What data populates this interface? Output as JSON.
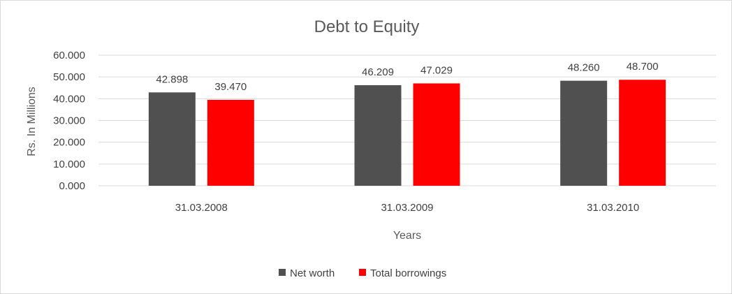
{
  "chart_data": {
    "type": "bar",
    "title": "Debt to Equity",
    "xlabel": "Years",
    "ylabel": "Rs. In Millions",
    "categories": [
      "31.03.2008",
      "31.03.2009",
      "31.03.2010"
    ],
    "series": [
      {
        "name": "Net worth",
        "values": [
          42.898,
          46.209,
          48.26
        ],
        "labels": [
          "42.898",
          "46.209",
          "48.260"
        ],
        "color": "#505050"
      },
      {
        "name": "Total borrowings",
        "values": [
          39.47,
          47.029,
          48.7
        ],
        "labels": [
          "39.470",
          "47.029",
          "48.700"
        ],
        "color": "#ff0000"
      }
    ],
    "ylim": [
      0,
      60
    ],
    "yticks": [
      "0.000",
      "10.000",
      "20.000",
      "30.000",
      "40.000",
      "50.000",
      "60.000"
    ],
    "grid": true,
    "legend_position": "bottom"
  }
}
